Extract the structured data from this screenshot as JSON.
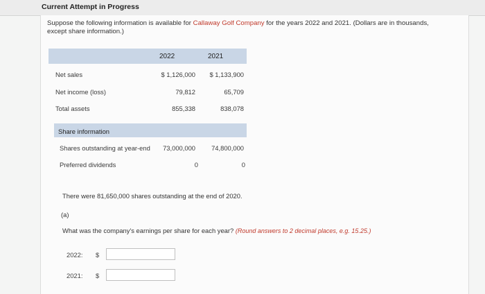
{
  "banner": {
    "title": "Current Attempt in Progress"
  },
  "intro": {
    "text_before": "Suppose the following information is available for ",
    "company": "Callaway Golf Company",
    "text_after": " for the years 2022 and 2021. (Dollars are in thousands, except share information.)"
  },
  "table": {
    "year_1": "2022",
    "year_2": "2021",
    "rows": [
      {
        "label": "Net sales",
        "v2022": "$ 1,126,000",
        "v2021": "$ 1,133,900"
      },
      {
        "label": "Net income (loss)",
        "v2022": "79,812",
        "v2021": "65,709"
      },
      {
        "label": "Total assets",
        "v2022": "855,338",
        "v2021": "838,078"
      }
    ]
  },
  "share": {
    "header": "Share information",
    "rows": [
      {
        "label": "Shares outstanding at year-end",
        "v2022": "73,000,000",
        "v2021": "74,800,000"
      },
      {
        "label": "Preferred dividends",
        "v2022": "0",
        "v2021": "0"
      }
    ]
  },
  "note": "There were 81,650,000 shares outstanding at the end of 2020.",
  "part": "(a)",
  "question": {
    "text": "What was the company's earnings per share for each year? ",
    "instruction": "(Round answers to 2 decimal places, e.g. 15.25.)"
  },
  "answers": [
    {
      "year_label": "2022:",
      "currency": "$",
      "value": ""
    },
    {
      "year_label": "2021:",
      "currency": "$",
      "value": ""
    }
  ]
}
